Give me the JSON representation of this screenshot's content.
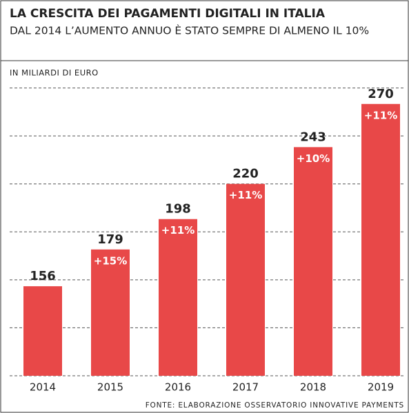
{
  "chart_data": {
    "type": "bar",
    "title": "LA CRESCITA DEI PAGAMENTI DIGITALI IN ITALIA",
    "subtitle": "DAL 2014 L’AUMENTO ANNUO È STATO SEMPRE DI ALMENO IL 10%",
    "y_label": "IN MILIARDI DI EURO",
    "source": "FONTE: ELABORAZIONE OSSERVATORIO INNOVATIVE PAYMENTS",
    "categories": [
      "2014",
      "2015",
      "2016",
      "2017",
      "2018",
      "2019"
    ],
    "values": [
      156,
      179,
      198,
      220,
      243,
      270
    ],
    "growth_labels": [
      null,
      "+15%",
      "+11%",
      "+11%",
      "+10%",
      "+11%"
    ],
    "color": "#e84848",
    "ylim": [
      100,
      285
    ],
    "yticks": [
      100,
      130,
      160,
      190,
      220,
      250,
      280
    ],
    "grid": true
  }
}
